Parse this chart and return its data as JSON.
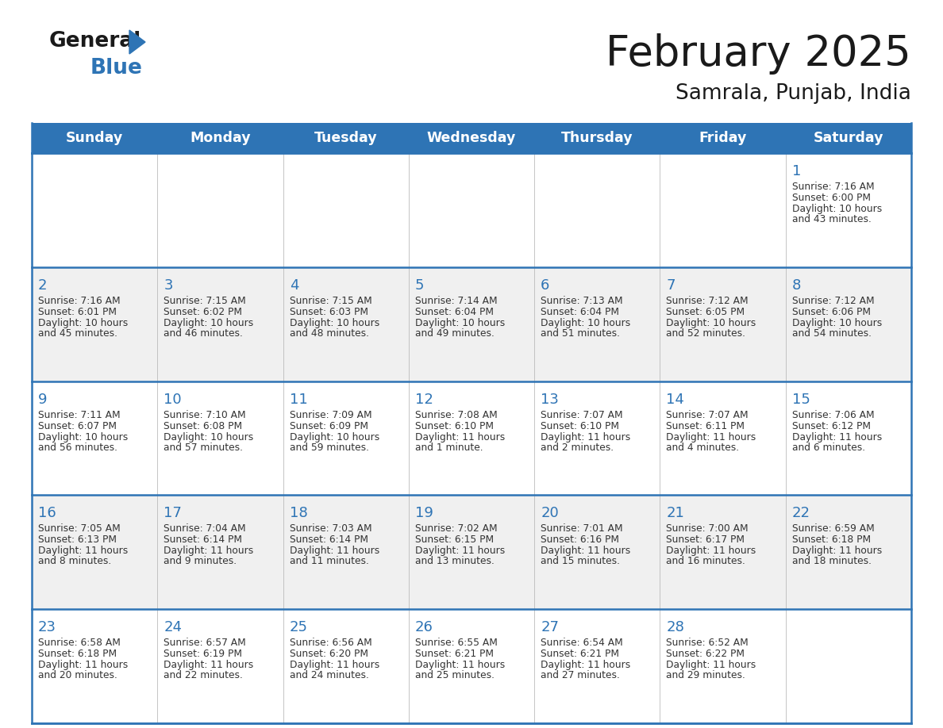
{
  "title": "February 2025",
  "subtitle": "Samrala, Punjab, India",
  "header_bg_color": "#2E74B5",
  "header_text_color": "#FFFFFF",
  "row_bg_colors": [
    "#FFFFFF",
    "#F0F0F0"
  ],
  "day_headers": [
    "Sunday",
    "Monday",
    "Tuesday",
    "Wednesday",
    "Thursday",
    "Friday",
    "Saturday"
  ],
  "cell_border_color": "#2E74B5",
  "day_number_color": "#2E74B5",
  "cell_text_color": "#333333",
  "background_color": "#FFFFFF",
  "calendar_data": [
    [
      {
        "day": null,
        "sunrise": null,
        "sunset": null,
        "daylight_line1": null,
        "daylight_line2": null
      },
      {
        "day": null,
        "sunrise": null,
        "sunset": null,
        "daylight_line1": null,
        "daylight_line2": null
      },
      {
        "day": null,
        "sunrise": null,
        "sunset": null,
        "daylight_line1": null,
        "daylight_line2": null
      },
      {
        "day": null,
        "sunrise": null,
        "sunset": null,
        "daylight_line1": null,
        "daylight_line2": null
      },
      {
        "day": null,
        "sunrise": null,
        "sunset": null,
        "daylight_line1": null,
        "daylight_line2": null
      },
      {
        "day": null,
        "sunrise": null,
        "sunset": null,
        "daylight_line1": null,
        "daylight_line2": null
      },
      {
        "day": 1,
        "sunrise": "7:16 AM",
        "sunset": "6:00 PM",
        "daylight_line1": "Daylight: 10 hours",
        "daylight_line2": "and 43 minutes."
      }
    ],
    [
      {
        "day": 2,
        "sunrise": "7:16 AM",
        "sunset": "6:01 PM",
        "daylight_line1": "Daylight: 10 hours",
        "daylight_line2": "and 45 minutes."
      },
      {
        "day": 3,
        "sunrise": "7:15 AM",
        "sunset": "6:02 PM",
        "daylight_line1": "Daylight: 10 hours",
        "daylight_line2": "and 46 minutes."
      },
      {
        "day": 4,
        "sunrise": "7:15 AM",
        "sunset": "6:03 PM",
        "daylight_line1": "Daylight: 10 hours",
        "daylight_line2": "and 48 minutes."
      },
      {
        "day": 5,
        "sunrise": "7:14 AM",
        "sunset": "6:04 PM",
        "daylight_line1": "Daylight: 10 hours",
        "daylight_line2": "and 49 minutes."
      },
      {
        "day": 6,
        "sunrise": "7:13 AM",
        "sunset": "6:04 PM",
        "daylight_line1": "Daylight: 10 hours",
        "daylight_line2": "and 51 minutes."
      },
      {
        "day": 7,
        "sunrise": "7:12 AM",
        "sunset": "6:05 PM",
        "daylight_line1": "Daylight: 10 hours",
        "daylight_line2": "and 52 minutes."
      },
      {
        "day": 8,
        "sunrise": "7:12 AM",
        "sunset": "6:06 PM",
        "daylight_line1": "Daylight: 10 hours",
        "daylight_line2": "and 54 minutes."
      }
    ],
    [
      {
        "day": 9,
        "sunrise": "7:11 AM",
        "sunset": "6:07 PM",
        "daylight_line1": "Daylight: 10 hours",
        "daylight_line2": "and 56 minutes."
      },
      {
        "day": 10,
        "sunrise": "7:10 AM",
        "sunset": "6:08 PM",
        "daylight_line1": "Daylight: 10 hours",
        "daylight_line2": "and 57 minutes."
      },
      {
        "day": 11,
        "sunrise": "7:09 AM",
        "sunset": "6:09 PM",
        "daylight_line1": "Daylight: 10 hours",
        "daylight_line2": "and 59 minutes."
      },
      {
        "day": 12,
        "sunrise": "7:08 AM",
        "sunset": "6:10 PM",
        "daylight_line1": "Daylight: 11 hours",
        "daylight_line2": "and 1 minute."
      },
      {
        "day": 13,
        "sunrise": "7:07 AM",
        "sunset": "6:10 PM",
        "daylight_line1": "Daylight: 11 hours",
        "daylight_line2": "and 2 minutes."
      },
      {
        "day": 14,
        "sunrise": "7:07 AM",
        "sunset": "6:11 PM",
        "daylight_line1": "Daylight: 11 hours",
        "daylight_line2": "and 4 minutes."
      },
      {
        "day": 15,
        "sunrise": "7:06 AM",
        "sunset": "6:12 PM",
        "daylight_line1": "Daylight: 11 hours",
        "daylight_line2": "and 6 minutes."
      }
    ],
    [
      {
        "day": 16,
        "sunrise": "7:05 AM",
        "sunset": "6:13 PM",
        "daylight_line1": "Daylight: 11 hours",
        "daylight_line2": "and 8 minutes."
      },
      {
        "day": 17,
        "sunrise": "7:04 AM",
        "sunset": "6:14 PM",
        "daylight_line1": "Daylight: 11 hours",
        "daylight_line2": "and 9 minutes."
      },
      {
        "day": 18,
        "sunrise": "7:03 AM",
        "sunset": "6:14 PM",
        "daylight_line1": "Daylight: 11 hours",
        "daylight_line2": "and 11 minutes."
      },
      {
        "day": 19,
        "sunrise": "7:02 AM",
        "sunset": "6:15 PM",
        "daylight_line1": "Daylight: 11 hours",
        "daylight_line2": "and 13 minutes."
      },
      {
        "day": 20,
        "sunrise": "7:01 AM",
        "sunset": "6:16 PM",
        "daylight_line1": "Daylight: 11 hours",
        "daylight_line2": "and 15 minutes."
      },
      {
        "day": 21,
        "sunrise": "7:00 AM",
        "sunset": "6:17 PM",
        "daylight_line1": "Daylight: 11 hours",
        "daylight_line2": "and 16 minutes."
      },
      {
        "day": 22,
        "sunrise": "6:59 AM",
        "sunset": "6:18 PM",
        "daylight_line1": "Daylight: 11 hours",
        "daylight_line2": "and 18 minutes."
      }
    ],
    [
      {
        "day": 23,
        "sunrise": "6:58 AM",
        "sunset": "6:18 PM",
        "daylight_line1": "Daylight: 11 hours",
        "daylight_line2": "and 20 minutes."
      },
      {
        "day": 24,
        "sunrise": "6:57 AM",
        "sunset": "6:19 PM",
        "daylight_line1": "Daylight: 11 hours",
        "daylight_line2": "and 22 minutes."
      },
      {
        "day": 25,
        "sunrise": "6:56 AM",
        "sunset": "6:20 PM",
        "daylight_line1": "Daylight: 11 hours",
        "daylight_line2": "and 24 minutes."
      },
      {
        "day": 26,
        "sunrise": "6:55 AM",
        "sunset": "6:21 PM",
        "daylight_line1": "Daylight: 11 hours",
        "daylight_line2": "and 25 minutes."
      },
      {
        "day": 27,
        "sunrise": "6:54 AM",
        "sunset": "6:21 PM",
        "daylight_line1": "Daylight: 11 hours",
        "daylight_line2": "and 27 minutes."
      },
      {
        "day": 28,
        "sunrise": "6:52 AM",
        "sunset": "6:22 PM",
        "daylight_line1": "Daylight: 11 hours",
        "daylight_line2": "and 29 minutes."
      },
      {
        "day": null,
        "sunrise": null,
        "sunset": null,
        "daylight_line1": null,
        "daylight_line2": null
      }
    ]
  ]
}
